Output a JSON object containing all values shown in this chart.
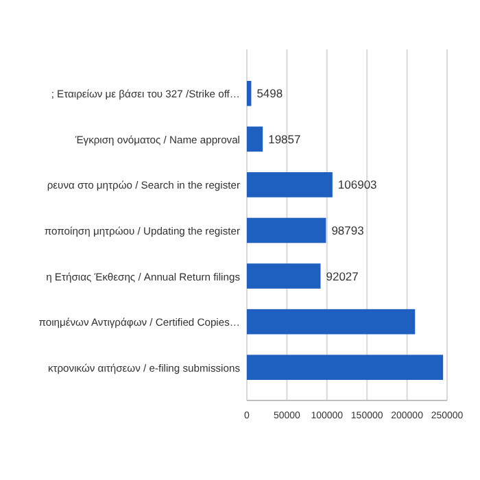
{
  "chart_data": {
    "type": "bar",
    "orientation": "horizontal",
    "categories": [
      "; Εταιρείων  με  βάσει του 327 /Strike off…",
      "Έγκριση ονόματος / Name approval",
      "ρευνα στο μητρώο / Search in the register",
      "ποποίηση μητρώου / Updating the register",
      "η Ετήσιας Έκθεσης / Annual Return filings",
      "ποιημένων Αντιγράφων  / Certified Copies…",
      "κτρονικών αιτήσεων / e-filing submissions"
    ],
    "values": [
      5498,
      19857,
      106903,
      98793,
      92027,
      210000,
      245000
    ],
    "value_labels": [
      "5498",
      "19857",
      "106903",
      "98793",
      "92027",
      null,
      null
    ],
    "color": "#1f5fbf",
    "xlim": [
      0,
      250000
    ],
    "xticks": [
      0,
      50000,
      100000,
      150000,
      200000,
      250000
    ],
    "grid": "x"
  }
}
